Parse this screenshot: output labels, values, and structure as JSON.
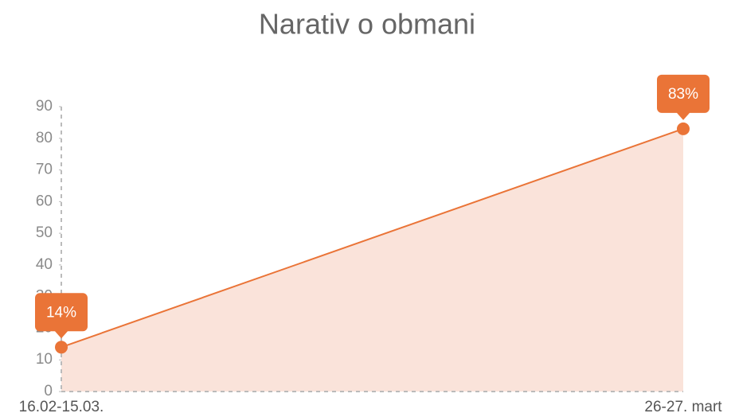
{
  "chart_data": {
    "type": "area",
    "title": "Narativ o obmani",
    "categories": [
      "16.02-15.03.",
      "26-27. mart"
    ],
    "values": [
      14,
      83
    ],
    "value_labels": [
      "14%",
      "83%"
    ],
    "color": "#ea7437",
    "fill": "#fae3da",
    "ylim": [
      0,
      90
    ],
    "yticks": [
      0,
      10,
      20,
      30,
      40,
      50,
      60,
      70,
      80,
      90
    ]
  }
}
